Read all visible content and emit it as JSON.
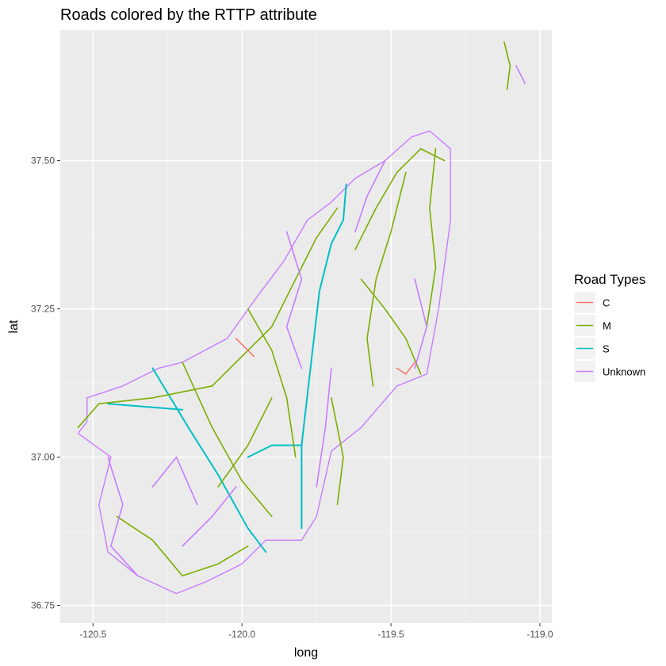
{
  "chart_data": {
    "type": "line",
    "title": "Roads colored by the RTTP attribute",
    "xlabel": "long",
    "ylabel": "lat",
    "xlim": [
      -120.61,
      -118.96
    ],
    "ylim": [
      36.72,
      37.72
    ],
    "x_ticks": [
      -120.5,
      -120.0,
      -119.5,
      -119.0
    ],
    "x_tick_labels": [
      "-120.5",
      "-120.0",
      "-119.5",
      "-119.0"
    ],
    "y_ticks": [
      36.75,
      37.0,
      37.25,
      37.5
    ],
    "y_tick_labels": [
      "36.75",
      "37.00",
      "37.25",
      "37.50"
    ],
    "grid": true,
    "legend": {
      "title": "Road Types",
      "position": "right",
      "entries": [
        {
          "label": "C",
          "color": "#F8766D"
        },
        {
          "label": "M",
          "color": "#7CAE00"
        },
        {
          "label": "S",
          "color": "#00BFC4"
        },
        {
          "label": "Unknown",
          "color": "#C77CFF"
        }
      ]
    },
    "county_outline": [
      [
        -120.55,
        37.04
      ],
      [
        -120.52,
        37.06
      ],
      [
        -120.52,
        37.1
      ],
      [
        -120.4,
        37.12
      ],
      [
        -120.28,
        37.15
      ],
      [
        -120.2,
        37.16
      ],
      [
        -120.05,
        37.2
      ],
      [
        -119.95,
        37.27
      ],
      [
        -119.86,
        37.33
      ],
      [
        -119.78,
        37.4
      ],
      [
        -119.7,
        37.43
      ],
      [
        -119.62,
        37.47
      ],
      [
        -119.52,
        37.5
      ],
      [
        -119.43,
        37.54
      ],
      [
        -119.37,
        37.55
      ],
      [
        -119.3,
        37.52
      ],
      [
        -119.3,
        37.4
      ],
      [
        -119.34,
        37.25
      ],
      [
        -119.38,
        37.14
      ],
      [
        -119.48,
        37.12
      ],
      [
        -119.6,
        37.05
      ],
      [
        -119.7,
        37.01
      ],
      [
        -119.75,
        36.9
      ],
      [
        -119.8,
        36.86
      ],
      [
        -119.92,
        36.86
      ],
      [
        -120.0,
        36.82
      ],
      [
        -120.12,
        36.79
      ],
      [
        -120.22,
        36.77
      ],
      [
        -120.35,
        36.8
      ],
      [
        -120.45,
        36.84
      ],
      [
        -120.48,
        36.92
      ],
      [
        -120.44,
        37.0
      ],
      [
        -120.55,
        37.04
      ]
    ],
    "series": [
      {
        "name": "S",
        "color": "#00BFC4",
        "lines": [
          [
            [
              -120.3,
              37.15
            ],
            [
              -120.18,
              37.05
            ],
            [
              -120.08,
              36.97
            ],
            [
              -119.98,
              36.88
            ],
            [
              -119.92,
              36.84
            ]
          ],
          [
            [
              -119.8,
              36.88
            ],
            [
              -119.8,
              37.02
            ],
            [
              -119.77,
              37.15
            ],
            [
              -119.74,
              37.28
            ],
            [
              -119.7,
              37.36
            ],
            [
              -119.66,
              37.4
            ],
            [
              -119.65,
              37.46
            ]
          ],
          [
            [
              -119.98,
              37.0
            ],
            [
              -119.9,
              37.02
            ],
            [
              -119.8,
              37.02
            ]
          ],
          [
            [
              -120.45,
              37.09
            ],
            [
              -120.2,
              37.08
            ]
          ]
        ]
      },
      {
        "name": "M",
        "color": "#7CAE00",
        "lines": [
          [
            [
              -120.55,
              37.05
            ],
            [
              -120.48,
              37.09
            ],
            [
              -120.3,
              37.1
            ],
            [
              -120.1,
              37.12
            ]
          ],
          [
            [
              -120.1,
              37.12
            ],
            [
              -120.0,
              37.17
            ],
            [
              -119.9,
              37.22
            ],
            [
              -119.82,
              37.3
            ],
            [
              -119.75,
              37.37
            ],
            [
              -119.68,
              37.42
            ]
          ],
          [
            [
              -120.2,
              37.16
            ],
            [
              -120.1,
              37.05
            ],
            [
              -120.0,
              36.96
            ],
            [
              -119.9,
              36.9
            ]
          ],
          [
            [
              -119.62,
              37.35
            ],
            [
              -119.55,
              37.42
            ],
            [
              -119.48,
              37.48
            ],
            [
              -119.4,
              37.52
            ],
            [
              -119.32,
              37.5
            ]
          ],
          [
            [
              -119.6,
              37.3
            ],
            [
              -119.52,
              37.25
            ],
            [
              -119.45,
              37.2
            ],
            [
              -119.4,
              37.14
            ]
          ],
          [
            [
              -119.98,
              37.25
            ],
            [
              -119.9,
              37.18
            ],
            [
              -119.85,
              37.1
            ],
            [
              -119.82,
              37.0
            ]
          ],
          [
            [
              -119.12,
              37.7
            ],
            [
              -119.1,
              37.66
            ],
            [
              -119.11,
              37.62
            ]
          ],
          [
            [
              -119.45,
              37.48
            ],
            [
              -119.5,
              37.38
            ],
            [
              -119.55,
              37.3
            ],
            [
              -119.58,
              37.2
            ],
            [
              -119.56,
              37.12
            ]
          ],
          [
            [
              -119.35,
              37.52
            ],
            [
              -119.37,
              37.42
            ],
            [
              -119.35,
              37.32
            ],
            [
              -119.38,
              37.22
            ]
          ],
          [
            [
              -119.9,
              37.1
            ],
            [
              -119.98,
              37.02
            ],
            [
              -120.08,
              36.95
            ]
          ],
          [
            [
              -120.42,
              36.9
            ],
            [
              -120.3,
              36.86
            ],
            [
              -120.2,
              36.8
            ],
            [
              -120.08,
              36.82
            ],
            [
              -119.98,
              36.85
            ]
          ],
          [
            [
              -119.7,
              37.1
            ],
            [
              -119.66,
              37.0
            ],
            [
              -119.68,
              36.92
            ]
          ]
        ]
      },
      {
        "name": "C",
        "color": "#F8766D",
        "lines": [
          [
            [
              -119.48,
              37.15
            ],
            [
              -119.45,
              37.14
            ],
            [
              -119.42,
              37.16
            ]
          ],
          [
            [
              -120.02,
              37.2
            ],
            [
              -119.98,
              37.18
            ],
            [
              -119.96,
              37.17
            ]
          ]
        ]
      },
      {
        "name": "Unknown",
        "color": "#C77CFF",
        "lines": [
          [
            [
              -120.45,
              37.0
            ],
            [
              -120.4,
              36.92
            ],
            [
              -120.44,
              36.85
            ],
            [
              -120.35,
              36.8
            ]
          ],
          [
            [
              -119.85,
              37.38
            ],
            [
              -119.8,
              37.3
            ],
            [
              -119.85,
              37.22
            ],
            [
              -119.8,
              37.15
            ]
          ],
          [
            [
              -119.52,
              37.5
            ],
            [
              -119.58,
              37.44
            ],
            [
              -119.62,
              37.38
            ]
          ],
          [
            [
              -119.42,
              37.3
            ],
            [
              -119.38,
              37.22
            ],
            [
              -119.42,
              37.15
            ]
          ],
          [
            [
              -120.2,
              36.85
            ],
            [
              -120.1,
              36.9
            ],
            [
              -120.02,
              36.95
            ]
          ],
          [
            [
              -119.75,
              36.95
            ],
            [
              -119.72,
              37.05
            ],
            [
              -119.7,
              37.15
            ]
          ],
          [
            [
              -119.08,
              37.66
            ],
            [
              -119.05,
              37.63
            ]
          ],
          [
            [
              -120.3,
              36.95
            ],
            [
              -120.22,
              37.0
            ],
            [
              -120.15,
              36.92
            ]
          ]
        ]
      }
    ]
  }
}
